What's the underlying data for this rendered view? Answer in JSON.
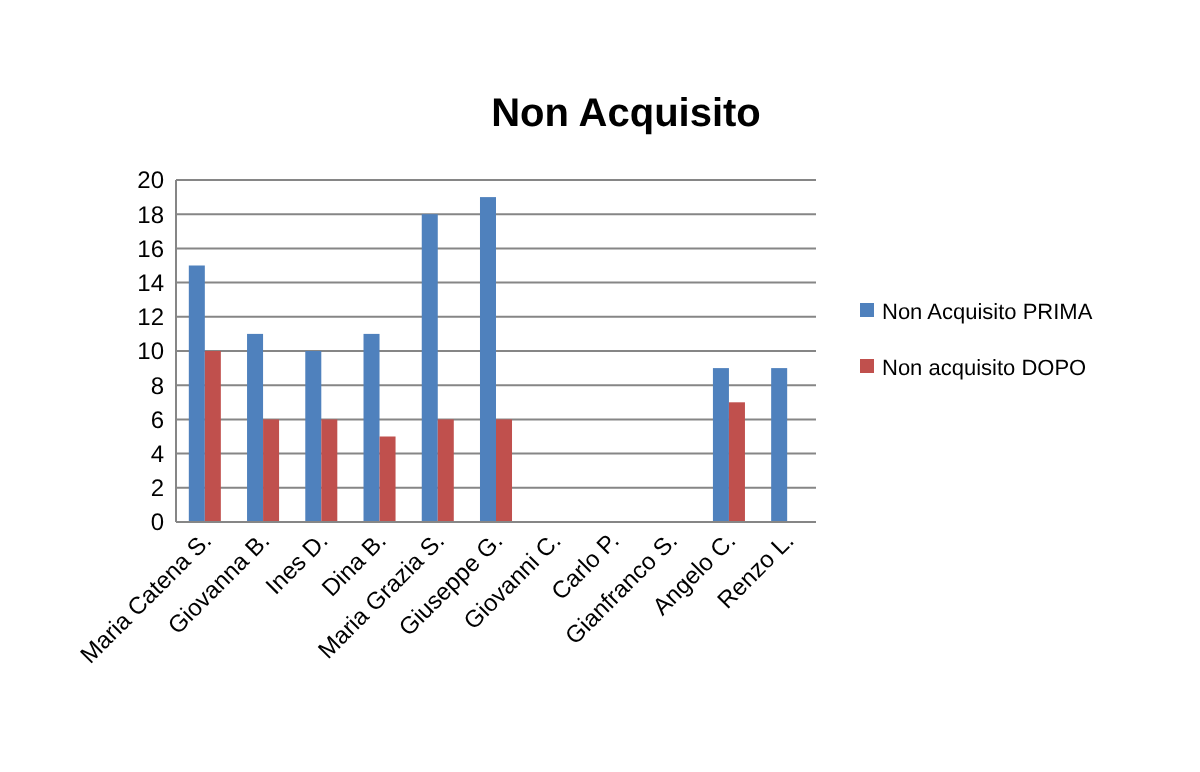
{
  "chart_data": {
    "type": "bar",
    "title": "Non Acquisito",
    "categories": [
      "Maria Catena S.",
      "Giovanna B.",
      "Ines D.",
      "Dina B.",
      "Maria Grazia S.",
      "Giuseppe G.",
      "Giovanni C.",
      "Carlo P.",
      "Gianfranco S.",
      "Angelo C.",
      "Renzo L."
    ],
    "series": [
      {
        "name": "Non Acquisito PRIMA",
        "color": "#4f81bd",
        "values": [
          15,
          11,
          10,
          11,
          18,
          19,
          null,
          null,
          null,
          9,
          9
        ]
      },
      {
        "name": "Non acquisito DOPO",
        "color": "#c0504d",
        "values": [
          10,
          6,
          6,
          5,
          6,
          6,
          null,
          null,
          null,
          7,
          null
        ]
      }
    ],
    "ylim": [
      0,
      20
    ],
    "yticks": [
      0,
      2,
      4,
      6,
      8,
      10,
      12,
      14,
      16,
      18,
      20
    ],
    "grid": "y",
    "legend": "right"
  }
}
